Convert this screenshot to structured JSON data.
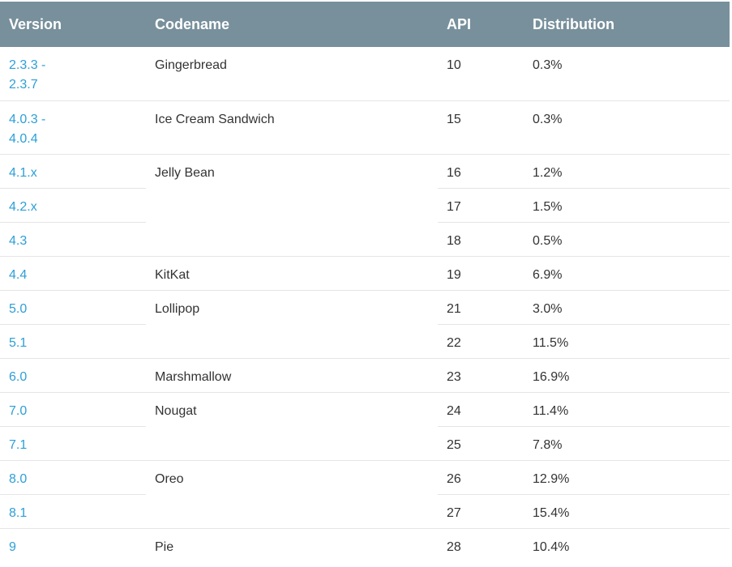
{
  "headers": {
    "version": "Version",
    "codename": "Codename",
    "api": "API",
    "distribution": "Distribution"
  },
  "rows": [
    {
      "version_line1": "2.3.3 -",
      "version_line2": "2.3.7",
      "codename": "Gingerbread",
      "api": "10",
      "distribution": "0.3%"
    },
    {
      "version_line1": "4.0.3 -",
      "version_line2": "4.0.4",
      "codename": "Ice Cream Sandwich",
      "api": "15",
      "distribution": "0.3%"
    },
    {
      "version": "4.1.x",
      "codename": "Jelly Bean",
      "api": "16",
      "distribution": "1.2%"
    },
    {
      "version": "4.2.x",
      "api": "17",
      "distribution": "1.5%"
    },
    {
      "version": "4.3",
      "api": "18",
      "distribution": "0.5%"
    },
    {
      "version": "4.4",
      "codename": "KitKat",
      "api": "19",
      "distribution": "6.9%"
    },
    {
      "version": "5.0",
      "codename": "Lollipop",
      "api": "21",
      "distribution": "3.0%"
    },
    {
      "version": "5.1",
      "api": "22",
      "distribution": "11.5%"
    },
    {
      "version": "6.0",
      "codename": "Marshmallow",
      "api": "23",
      "distribution": "16.9%"
    },
    {
      "version": "7.0",
      "codename": "Nougat",
      "api": "24",
      "distribution": "11.4%"
    },
    {
      "version": "7.1",
      "api": "25",
      "distribution": "7.8%"
    },
    {
      "version": "8.0",
      "codename": "Oreo",
      "api": "26",
      "distribution": "12.9%"
    },
    {
      "version": "8.1",
      "api": "27",
      "distribution": "15.4%"
    },
    {
      "version": "9",
      "codename": "Pie",
      "api": "28",
      "distribution": "10.4%"
    }
  ],
  "colors": {
    "header_bg": "#78909c",
    "header_text": "#ffffff",
    "link": "#2d9fd8",
    "row_divider": "#e5e5e5"
  }
}
